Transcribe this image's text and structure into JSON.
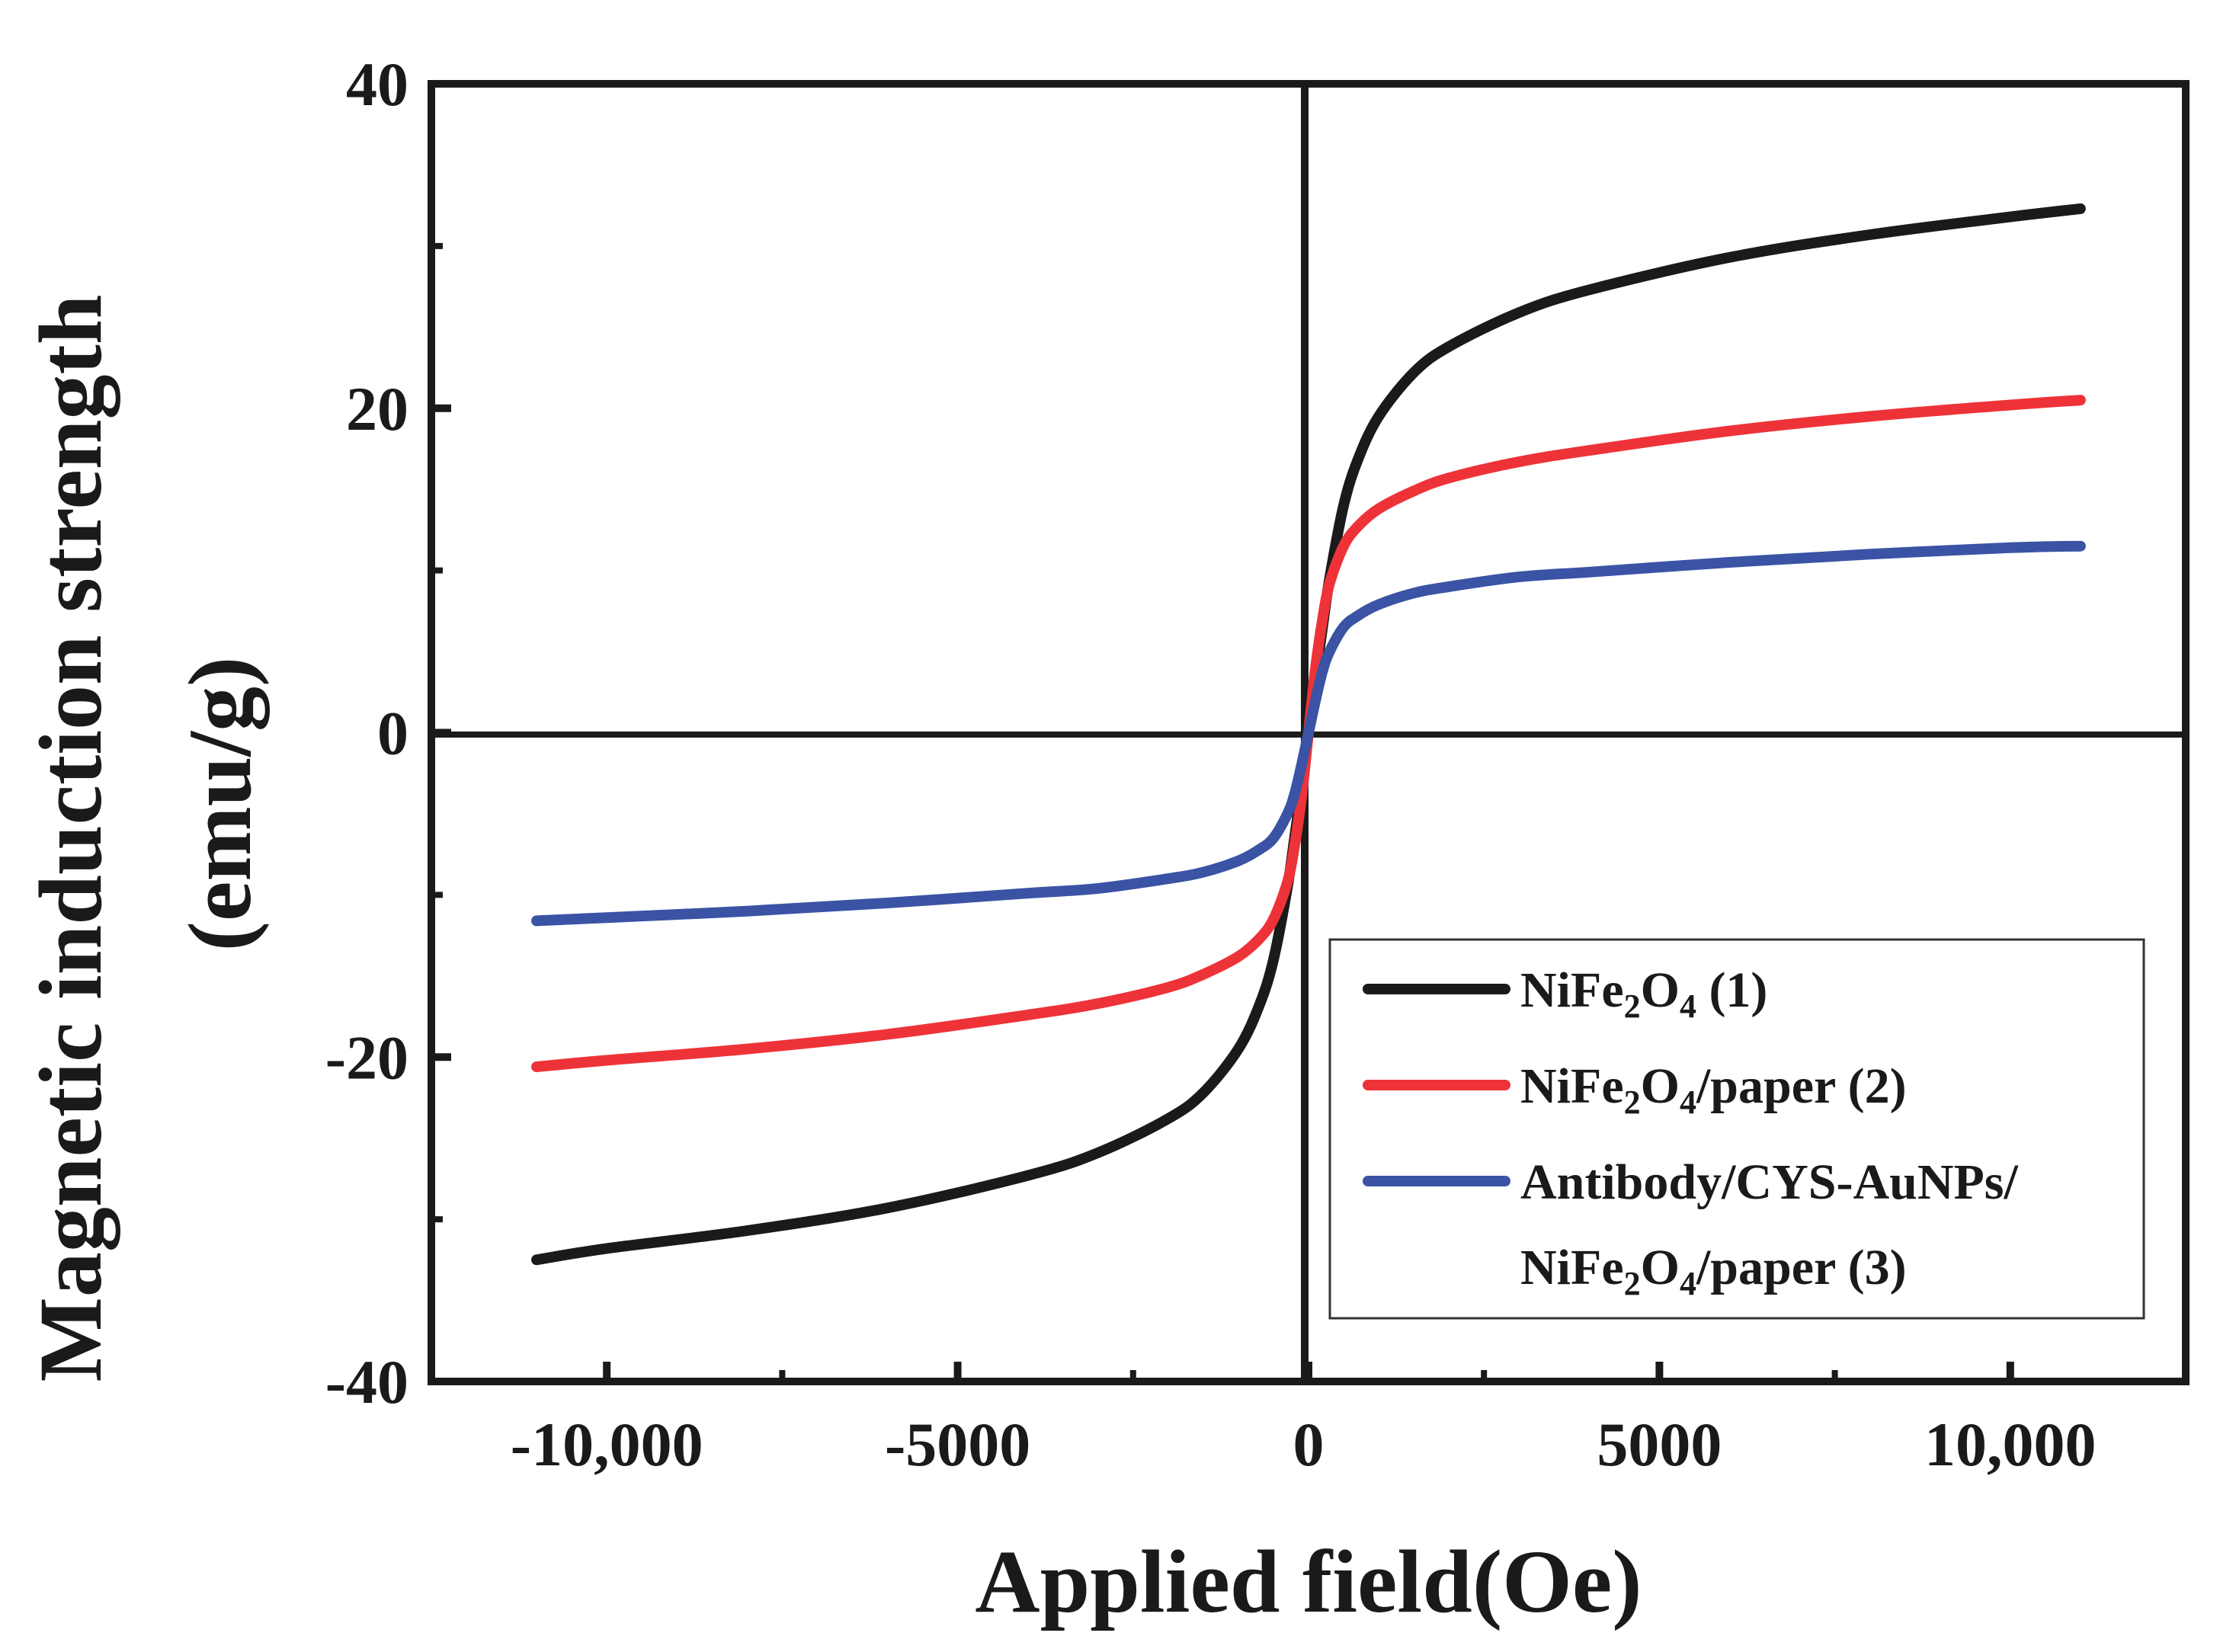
{
  "chart_data": {
    "type": "line",
    "title": "",
    "xlabel": "Applied field(Oe)",
    "ylabel_line1": "Magnetic induction strength",
    "ylabel_line2": "(emu/g)",
    "xlim": [
      -12500,
      12500
    ],
    "ylim": [
      -40,
      40
    ],
    "xticks": [
      -10000,
      -5000,
      0,
      5000,
      10000
    ],
    "xtick_labels": [
      "-10,000",
      "-5000",
      "0",
      "5000",
      "10,000"
    ],
    "yticks": [
      -40,
      -20,
      0,
      20,
      40
    ],
    "ytick_labels": [
      "-40",
      "-20",
      "0",
      "20",
      "40"
    ],
    "legend_position": "bottom-right",
    "series": [
      {
        "name": "NiFe2O4 (1)",
        "legend_main": "NiFe",
        "legend_sub1": "2",
        "legend_mid": "O",
        "legend_sub2": "4",
        "legend_tail": " (1)",
        "color": "#1a1a1a",
        "x": [
          -11000,
          -10000,
          -8000,
          -6000,
          -4000,
          -3000,
          -2000,
          -1500,
          -1000,
          -700,
          -500,
          -300,
          -200,
          -100,
          0,
          100,
          200,
          300,
          500,
          700,
          1000,
          1500,
          2000,
          3000,
          4000,
          6000,
          8000,
          10000,
          11000
        ],
        "y": [
          -32.5,
          -31.8,
          -30.7,
          -29.3,
          -27.3,
          -25.9,
          -23.8,
          -22.2,
          -19.5,
          -16.8,
          -14,
          -9.5,
          -6.5,
          -3.4,
          0,
          3.4,
          6.5,
          9.5,
          14,
          16.8,
          19.5,
          22.2,
          23.8,
          25.9,
          27.3,
          29.3,
          30.7,
          31.8,
          32.3
        ]
      },
      {
        "name": "NiFe2O4/paper (2)",
        "legend_main": "NiFe",
        "legend_sub1": "2",
        "legend_mid": "O",
        "legend_sub2": "4",
        "legend_tail": "/paper (2)",
        "color": "#ee3338",
        "x": [
          -11000,
          -10000,
          -8000,
          -6000,
          -4000,
          -3000,
          -2000,
          -1500,
          -1000,
          -700,
          -500,
          -300,
          -200,
          -100,
          0,
          100,
          200,
          300,
          500,
          700,
          1000,
          1500,
          2000,
          3000,
          4000,
          6000,
          8000,
          10000,
          11000
        ],
        "y": [
          -20.6,
          -20.2,
          -19.5,
          -18.6,
          -17.4,
          -16.7,
          -15.7,
          -14.9,
          -13.8,
          -12.7,
          -11.5,
          -9.2,
          -7.0,
          -4.0,
          0,
          4.0,
          7.0,
          9.2,
          11.5,
          12.7,
          13.8,
          14.9,
          15.7,
          16.7,
          17.4,
          18.6,
          19.5,
          20.2,
          20.5
        ]
      },
      {
        "name": "Antibody/CYS-AuNPs/NiFe2O4/paper (3)",
        "legend_line1": "Antibody/CYS-AuNPs/",
        "legend_main": "NiFe",
        "legend_sub1": "2",
        "legend_mid": "O",
        "legend_sub2": "4",
        "legend_tail": "/paper (3)",
        "color": "#3a53a4",
        "x": [
          -11000,
          -10000,
          -8000,
          -6000,
          -4000,
          -3000,
          -2000,
          -1500,
          -1000,
          -700,
          -500,
          -300,
          -200,
          -100,
          0,
          100,
          200,
          300,
          500,
          700,
          1000,
          1500,
          2000,
          3000,
          4000,
          6000,
          8000,
          10000,
          11000
        ],
        "y": [
          -11.6,
          -11.4,
          -11.0,
          -10.5,
          -9.9,
          -9.6,
          -9.0,
          -8.6,
          -7.9,
          -7.2,
          -6.5,
          -5.0,
          -3.8,
          -2.0,
          0,
          2.0,
          3.8,
          5.0,
          6.5,
          7.2,
          7.9,
          8.6,
          9.0,
          9.6,
          9.9,
          10.5,
          11.0,
          11.4,
          11.5
        ]
      }
    ]
  }
}
